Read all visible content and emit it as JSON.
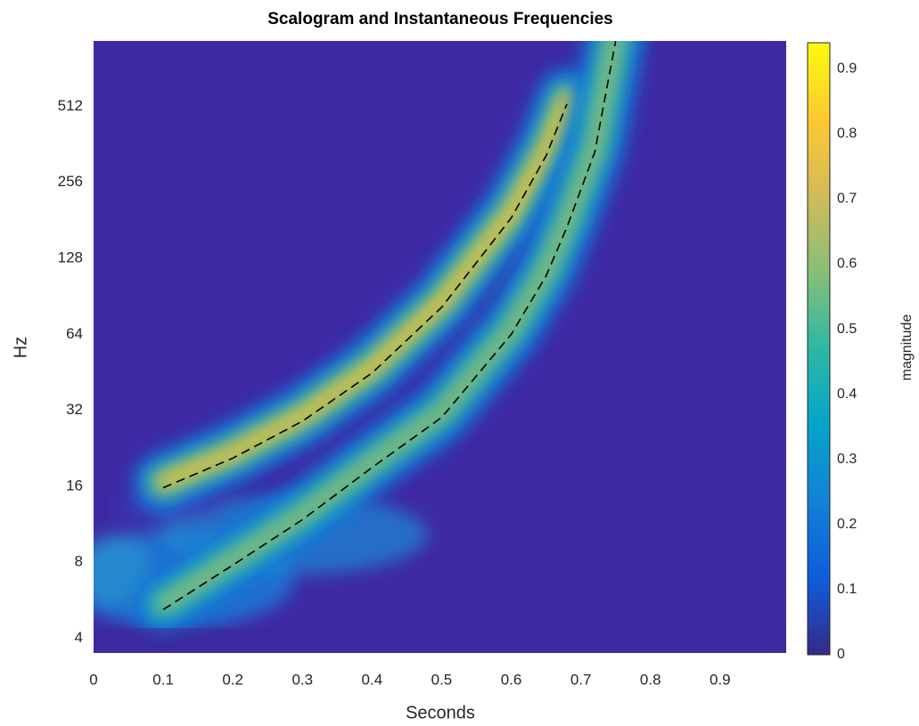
{
  "chart_data": {
    "type": "line",
    "title": "Scalogram and Instantaneous Frequencies",
    "xlabel": "Seconds",
    "ylabel": "Hz",
    "yscale": "log",
    "xlim": [
      0,
      0.995
    ],
    "xticks": [
      0,
      0.1,
      0.2,
      0.3,
      0.4,
      0.5,
      0.6,
      0.7,
      0.8,
      0.9
    ],
    "ylim": [
      3.5,
      930
    ],
    "yticks": [
      4,
      8,
      16,
      32,
      64,
      128,
      256,
      512
    ],
    "series": [
      {
        "color": "#000000",
        "x": [
          0.1,
          0.2,
          0.3,
          0.4,
          0.5,
          0.6,
          0.65,
          0.68
        ],
        "values": [
          15.8,
          20.7,
          29,
          45,
          82,
          185,
          326,
          523
        ]
      },
      {
        "color": "#000000",
        "x": [
          0.1,
          0.2,
          0.3,
          0.4,
          0.5,
          0.6,
          0.65,
          0.68,
          0.72,
          0.75
        ],
        "values": [
          5.2,
          7.8,
          11.8,
          19,
          30,
          64,
          109,
          170,
          338,
          930
        ]
      }
    ],
    "colorbar": {
      "label": "magnitude",
      "clim": [
        0,
        0.94
      ],
      "ticks": [
        0,
        0.1,
        0.2,
        0.3,
        0.4,
        0.5,
        0.6,
        0.7,
        0.8,
        0.9
      ]
    }
  }
}
